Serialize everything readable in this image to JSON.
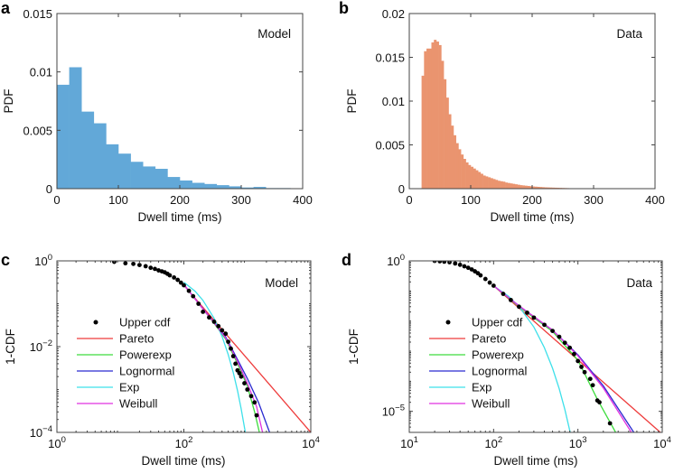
{
  "chart_data": [
    {
      "panel": "a",
      "type": "bar",
      "annotation": "Model",
      "xlabel": "Dwell time (ms)",
      "ylabel": "PDF",
      "xscale": "linear",
      "yscale": "linear",
      "xlim": [
        0,
        400
      ],
      "ylim": [
        0,
        0.015
      ],
      "xticks": [
        0,
        100,
        200,
        300,
        400
      ],
      "xtick_labels": [
        "0",
        "100",
        "200",
        "300",
        "400"
      ],
      "yticks": [
        0,
        0.005,
        0.01,
        0.015
      ],
      "ytick_labels": [
        "0",
        "0.005",
        "0.01",
        "0.015"
      ],
      "color": "#62a8d8",
      "bin_start": 0,
      "bin_width": 20,
      "values": [
        0.0089,
        0.0104,
        0.0066,
        0.0056,
        0.0038,
        0.003,
        0.0023,
        0.0019,
        0.0017,
        0.001,
        0.0007,
        0.0005,
        0.0004,
        0.0003,
        0.0002,
        0.0001,
        0.00015,
        5e-05,
        5e-05,
        2e-05
      ]
    },
    {
      "panel": "b",
      "type": "bar",
      "annotation": "Data",
      "xlabel": "Dwell time (ms)",
      "ylabel": "PDF",
      "xscale": "linear",
      "yscale": "linear",
      "xlim": [
        0,
        400
      ],
      "ylim": [
        0,
        0.02
      ],
      "xticks": [
        0,
        100,
        200,
        300,
        400
      ],
      "xtick_labels": [
        "0",
        "100",
        "200",
        "300",
        "400"
      ],
      "yticks": [
        0,
        0.005,
        0.01,
        0.015,
        0.02
      ],
      "ytick_labels": [
        "0",
        "0.005",
        "0.01",
        "0.015",
        "0.02"
      ],
      "color": "#ea946f",
      "bin_start": 20,
      "bin_width": 4,
      "values": [
        0.0129,
        0.0157,
        0.016,
        0.016,
        0.0167,
        0.017,
        0.0168,
        0.0164,
        0.0146,
        0.0125,
        0.0104,
        0.0085,
        0.0072,
        0.0061,
        0.0052,
        0.0045,
        0.0039,
        0.0034,
        0.003,
        0.0027,
        0.0025,
        0.0023,
        0.0021,
        0.0019,
        0.0017,
        0.0015,
        0.0014,
        0.0013,
        0.0012,
        0.0011,
        0.001,
        0.0009,
        0.00085,
        0.0008,
        0.0007,
        0.00065,
        0.0006,
        0.00055,
        0.0005,
        0.00045,
        0.0004,
        0.00037,
        0.00034,
        0.00031,
        0.00028,
        0.00025,
        0.00023,
        0.00021,
        0.00019,
        0.00017,
        0.00015,
        0.00014,
        0.00013,
        0.00012,
        0.00011,
        0.0001,
        9e-05,
        8e-05,
        7e-05,
        6e-05,
        5e-05,
        5e-05,
        4e-05,
        4e-05,
        3e-05,
        3e-05,
        2e-05,
        2e-05,
        2e-05,
        1e-05
      ]
    },
    {
      "panel": "c",
      "type": "line",
      "annotation": "Model",
      "xlabel": "Dwell time (ms)",
      "ylabel": "1-CDF",
      "xscale": "log",
      "yscale": "log",
      "xlim": [
        1,
        10000
      ],
      "ylim": [
        0.0001,
        1
      ],
      "xticks": [
        1,
        100,
        10000
      ],
      "xtick_labels": [
        "10^0",
        "10^2",
        "10^4"
      ],
      "yticks": [
        0.0001,
        0.01,
        1
      ],
      "ytick_labels": [
        "10^-4",
        "10^-2",
        "10^0"
      ],
      "legend_position": "center-left",
      "scatter": {
        "name": "Upper cdf",
        "color": "#000000",
        "points": [
          [
            8,
            1
          ],
          [
            8,
            0.95
          ],
          [
            12,
            0.88
          ],
          [
            16,
            0.85
          ],
          [
            20,
            0.8
          ],
          [
            25,
            0.75
          ],
          [
            30,
            0.69
          ],
          [
            35,
            0.65
          ],
          [
            40,
            0.6
          ],
          [
            45,
            0.57
          ],
          [
            50,
            0.54
          ],
          [
            55,
            0.5
          ],
          [
            60,
            0.46
          ],
          [
            70,
            0.41
          ],
          [
            80,
            0.36
          ],
          [
            90,
            0.31
          ],
          [
            100,
            0.27
          ],
          [
            120,
            0.2
          ],
          [
            140,
            0.15
          ],
          [
            170,
            0.1
          ],
          [
            200,
            0.065
          ],
          [
            250,
            0.048
          ],
          [
            300,
            0.038
          ],
          [
            350,
            0.03
          ],
          [
            400,
            0.024
          ],
          [
            455,
            0.02
          ],
          [
            500,
            0.013
          ],
          [
            550,
            0.009
          ],
          [
            600,
            0.006
          ],
          [
            650,
            0.004
          ],
          [
            700,
            0.0028
          ],
          [
            750,
            0.0024
          ],
          [
            800,
            0.002
          ],
          [
            900,
            0.0014
          ],
          [
            1000,
            0.001
          ],
          [
            1150,
            0.0007
          ],
          [
            1300,
            0.0005
          ],
          [
            1400,
            0.00025
          ]
        ]
      },
      "series": [
        {
          "name": "Pareto",
          "color": "#ee3b3b",
          "points": [
            [
              100,
              0.27
            ],
            [
              10000,
              0.0001
            ]
          ]
        },
        {
          "name": "Powerexp",
          "color": "#3ddc3d",
          "points": [
            [
              100,
              0.28
            ],
            [
              200,
              0.075
            ],
            [
              300,
              0.035
            ],
            [
              455,
              0.015
            ],
            [
              700,
              0.004
            ],
            [
              1000,
              0.0012
            ],
            [
              1300,
              0.0003
            ],
            [
              1550,
              0.0001
            ]
          ]
        },
        {
          "name": "Lognormal",
          "color": "#2a2ad0",
          "points": [
            [
              100,
              0.28
            ],
            [
              200,
              0.077
            ],
            [
              300,
              0.037
            ],
            [
              455,
              0.017
            ],
            [
              700,
              0.005
            ],
            [
              1000,
              0.0018
            ],
            [
              1500,
              0.0005
            ],
            [
              2240,
              0.0001
            ]
          ]
        },
        {
          "name": "Exp",
          "color": "#3ee0ea",
          "points": [
            [
              100,
              0.318
            ],
            [
              150,
              0.196
            ],
            [
              200,
              0.12
            ],
            [
              300,
              0.0456
            ],
            [
              400,
              0.0173
            ],
            [
              500,
              0.00654
            ],
            [
              600,
              0.00248
            ],
            [
              700,
              0.00094
            ],
            [
              800,
              0.000356
            ],
            [
              930,
              0.000101
            ]
          ]
        },
        {
          "name": "Weibull",
          "color": "#e030e0",
          "points": [
            [
              100,
              0.28
            ],
            [
              200,
              0.076
            ],
            [
              300,
              0.036
            ],
            [
              455,
              0.016
            ],
            [
              700,
              0.0045
            ],
            [
              1000,
              0.0014
            ],
            [
              1400,
              0.0004
            ],
            [
              1740,
              0.0001
            ]
          ]
        }
      ]
    },
    {
      "panel": "d",
      "type": "line",
      "annotation": "Data",
      "xlabel": "Dwell time (ms)",
      "ylabel": "1-CDF",
      "xscale": "log",
      "yscale": "log",
      "xlim": [
        10,
        10000
      ],
      "ylim": [
        2e-06,
        1
      ],
      "xticks": [
        10,
        100,
        1000,
        10000
      ],
      "xtick_labels": [
        "10^1",
        "10^2",
        "10^3",
        "10^4"
      ],
      "yticks": [
        1e-05,
        1
      ],
      "ytick_labels": [
        "10^-5",
        "10^0"
      ],
      "legend_position": "center-left",
      "scatter": {
        "name": "Upper cdf",
        "color": "#000000",
        "points": [
          [
            20,
            1
          ],
          [
            23,
            0.97
          ],
          [
            26,
            0.94
          ],
          [
            30,
            0.9
          ],
          [
            35,
            0.82
          ],
          [
            40,
            0.74
          ],
          [
            45,
            0.66
          ],
          [
            50,
            0.59
          ],
          [
            55,
            0.52
          ],
          [
            60,
            0.45
          ],
          [
            65,
            0.39
          ],
          [
            70,
            0.33
          ],
          [
            80,
            0.25
          ],
          [
            90,
            0.19
          ],
          [
            100,
            0.15
          ],
          [
            130,
            0.08
          ],
          [
            160,
            0.05
          ],
          [
            200,
            0.03
          ],
          [
            250,
            0.019
          ],
          [
            300,
            0.013
          ],
          [
            400,
            0.0075
          ],
          [
            500,
            0.0047
          ],
          [
            600,
            0.003
          ],
          [
            700,
            0.0019
          ],
          [
            800,
            0.0013
          ],
          [
            900,
            0.0008
          ],
          [
            1000,
            0.00047
          ],
          [
            1100,
            0.0003
          ],
          [
            1200,
            0.0002
          ],
          [
            1400,
            0.00012
          ],
          [
            1500,
            7.4e-05
          ],
          [
            1700,
            2.3e-05
          ],
          [
            1800,
            2e-05
          ],
          [
            2400,
            4e-06
          ]
        ]
      },
      "series": [
        {
          "name": "Pareto",
          "color": "#ee3b3b",
          "points": [
            [
              100,
              0.15
            ],
            [
              9500,
              2e-06
            ]
          ]
        },
        {
          "name": "Powerexp",
          "color": "#3ddc3d",
          "points": [
            [
              100,
              0.15
            ],
            [
              200,
              0.03
            ],
            [
              500,
              0.0045
            ],
            [
              1000,
              0.0005
            ],
            [
              1700,
              2.5e-05
            ],
            [
              2800,
              2e-06
            ]
          ]
        },
        {
          "name": "Lognormal",
          "color": "#2a2ad0",
          "points": [
            [
              100,
              0.15
            ],
            [
              200,
              0.032
            ],
            [
              500,
              0.005
            ],
            [
              1000,
              0.00075
            ],
            [
              2000,
              7e-05
            ],
            [
              4600,
              2e-06
            ]
          ]
        },
        {
          "name": "Exp",
          "color": "#3ee0ea",
          "points": [
            [
              100,
              0.148
            ],
            [
              150,
              0.0674
            ],
            [
              200,
              0.0306
            ],
            [
              300,
              0.00633
            ],
            [
              400,
              0.00131
            ],
            [
              500,
              0.00027
            ],
            [
              600,
              5.6e-05
            ],
            [
              700,
              1.15e-05
            ],
            [
              810,
              2e-06
            ]
          ]
        },
        {
          "name": "Weibull",
          "color": "#e030e0",
          "points": [
            [
              100,
              0.15
            ],
            [
              200,
              0.032
            ],
            [
              500,
              0.005
            ],
            [
              1000,
              0.0007
            ],
            [
              2000,
              6e-05
            ],
            [
              4300,
              2e-06
            ]
          ]
        }
      ]
    }
  ]
}
